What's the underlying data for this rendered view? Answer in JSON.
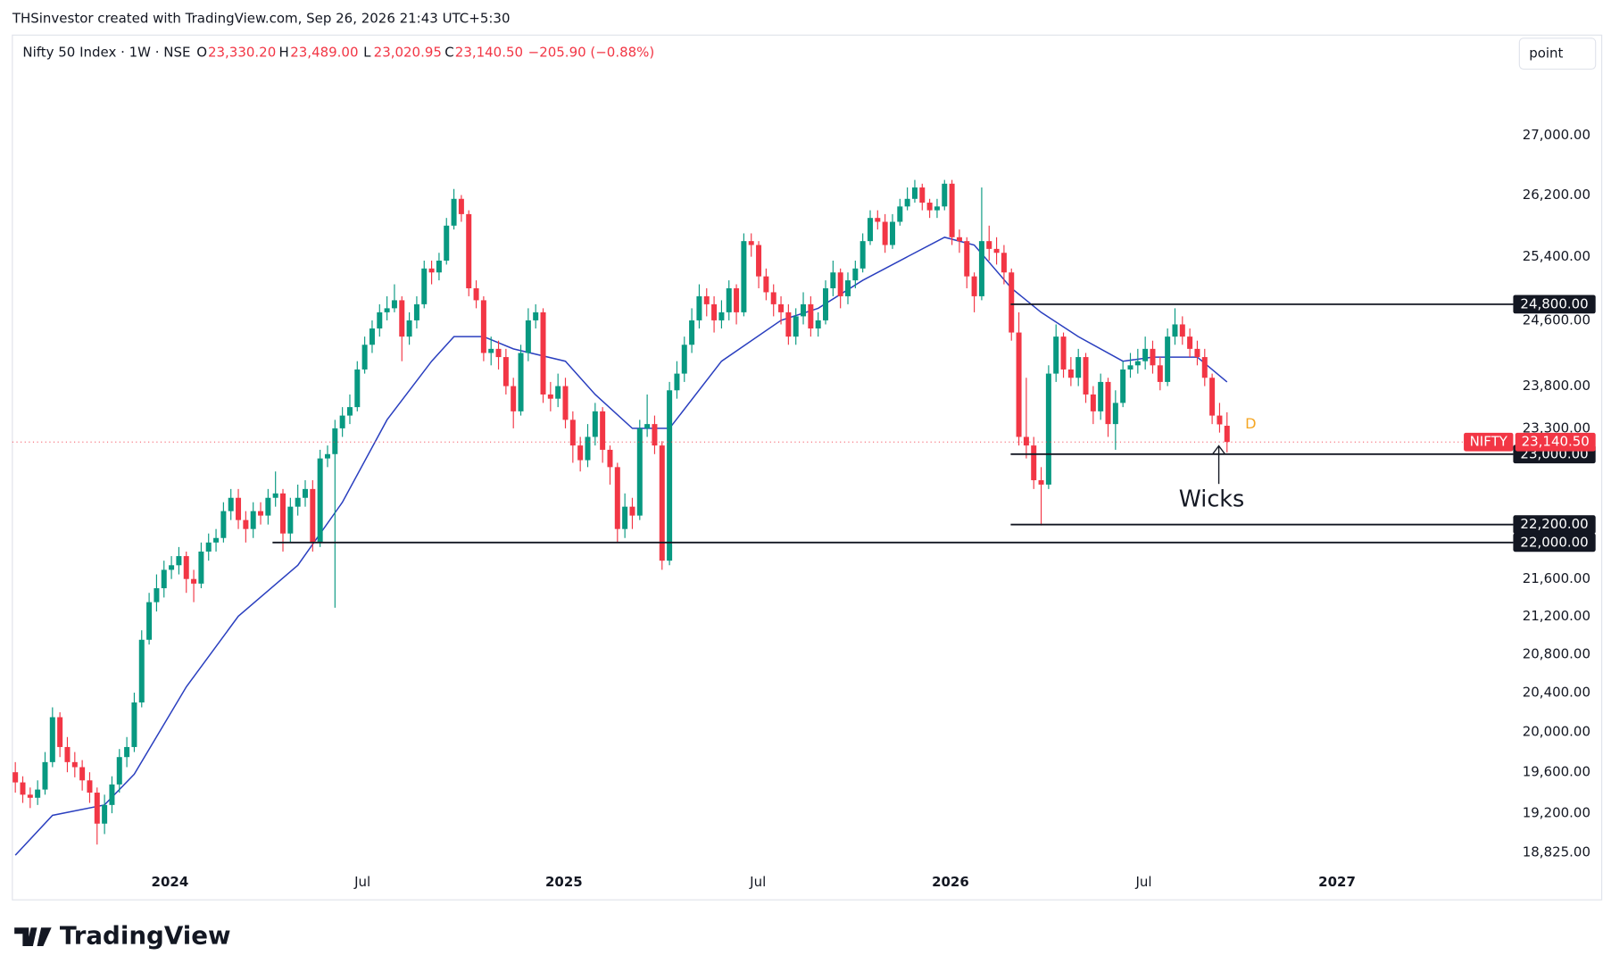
{
  "chart_data": {
    "type": "candlestick",
    "header": "THSinvestor created with TradingView.com, Sep 26, 2026 21:43 UTC+5:30",
    "symbol": "Nifty 50 Index · 1W · NSE",
    "ohlc_labels": {
      "open": "23,330.20",
      "high": "23,489.00",
      "low": "23,020.95",
      "close": "23,140.50"
    },
    "ohlc_letters": [
      "O",
      "H",
      "L",
      "C"
    ],
    "change_label": "−205.90 (−0.88%)",
    "button": "point",
    "brand": "TradingView",
    "marker": "D",
    "annotation": "Wicks",
    "log": true,
    "grid": false,
    "up_color": "#089981",
    "down_color": "#f23645",
    "xlim": [
      -0.4,
      201.5
    ],
    "ylim": [
      18420,
      27870
    ],
    "xticks": [
      {
        "value": 20.8,
        "label": "2024"
      },
      {
        "value": 46.7,
        "label": "Jul"
      },
      {
        "value": 73.8,
        "label": "2025"
      },
      {
        "value": 99.9,
        "label": "Jul"
      },
      {
        "value": 125.8,
        "label": "2026"
      },
      {
        "value": 151.8,
        "label": "Jul"
      },
      {
        "value": 177.8,
        "label": "2027"
      }
    ],
    "yticks": [
      {
        "value": 27000,
        "label": "27,000.00"
      },
      {
        "value": 26200,
        "label": "26,200.00"
      },
      {
        "value": 25400,
        "label": "25,400.00"
      },
      {
        "value": 24600,
        "label": "24,600.00"
      },
      {
        "value": 23800,
        "label": "23,800.00"
      },
      {
        "value": 23300,
        "label": "23,300.00"
      },
      {
        "value": 21600,
        "label": "21,600.00"
      },
      {
        "value": 21200,
        "label": "21,200.00"
      },
      {
        "value": 20800,
        "label": "20,800.00"
      },
      {
        "value": 20400,
        "label": "20,400.00"
      },
      {
        "value": 20000,
        "label": "20,000.00"
      },
      {
        "value": 19600,
        "label": "19,600.00"
      },
      {
        "value": 19200,
        "label": "19,200.00"
      },
      {
        "value": 18825,
        "label": "18,825.00"
      }
    ],
    "hlines": [
      {
        "value": 24800,
        "label": "24,800.00",
        "from": 133.9
      },
      {
        "value": 23000,
        "label": "23,000.00",
        "from": 133.9
      },
      {
        "value": 22200,
        "label": "22,200.00",
        "from": 133.9
      },
      {
        "value": 22000,
        "label": "22,000.00",
        "from": 34.6
      }
    ],
    "last": {
      "name": "NIFTY",
      "value": 23140.5,
      "label": "23,140.50"
    },
    "ma": {
      "color": "#2a3fbf",
      "x": [
        0,
        5,
        12,
        16,
        23,
        30,
        38,
        44,
        50,
        56,
        59,
        63,
        67,
        74,
        78,
        83,
        88,
        95,
        103,
        108,
        114,
        120,
        125,
        129,
        134,
        138,
        143,
        149,
        153,
        159,
        163
      ],
      "values": [
        18800,
        19180,
        19280,
        19580,
        20460,
        21200,
        21750,
        22450,
        23400,
        24100,
        24400,
        24400,
        24250,
        24100,
        23700,
        23300,
        23300,
        24100,
        24600,
        24750,
        25100,
        25400,
        25650,
        25550,
        25000,
        24700,
        24400,
        24100,
        24150,
        24150,
        23850
      ]
    },
    "open": [
      19600,
      19500,
      19380,
      19350,
      19430,
      19700,
      20150,
      19850,
      19700,
      19650,
      19520,
      19400,
      19100,
      19280,
      19480,
      19750,
      19850,
      20300,
      20950,
      21350,
      21500,
      21700,
      21750,
      21850,
      21600,
      21550,
      21900,
      22000,
      22050,
      22350,
      22500,
      22250,
      22150,
      22350,
      22300,
      22500,
      22550,
      22100,
      22400,
      22500,
      22600,
      22000,
      22950,
      23000,
      23300,
      23450,
      23550,
      24000,
      24300,
      24500,
      24700,
      24750,
      24850,
      24400,
      24600,
      24800,
      25250,
      25200,
      25350,
      25800,
      26150,
      25950,
      25000,
      24850,
      24200,
      24250,
      24150,
      23800,
      23500,
      24200,
      24600,
      24700,
      23700,
      23650,
      23800,
      23400,
      23100,
      22930,
      23200,
      23500,
      23050,
      22850,
      22150,
      22400,
      22300,
      23300,
      23350,
      23100,
      21800,
      23750,
      23950,
      24300,
      24600,
      24900,
      24800,
      24600,
      24700,
      25000,
      24700,
      25600,
      25550,
      25150,
      24950,
      24800,
      24700,
      24400,
      24650,
      24800,
      24500,
      24600,
      25000,
      25200,
      24900,
      25100,
      25250,
      25600,
      25900,
      25850,
      25550,
      25850,
      26050,
      26150,
      26300,
      26100,
      26000,
      26050,
      26350,
      25650,
      25600,
      25150,
      24900,
      25600,
      25500,
      25450,
      25200,
      24450,
      23200,
      23100,
      22700,
      22650,
      23950,
      24400,
      24000,
      23900,
      24150,
      23700,
      23500,
      23850,
      23350,
      23600,
      24000,
      24050,
      24100,
      24250,
      24050,
      23850,
      24400,
      24550,
      24400,
      24250,
      24150,
      23900,
      23450,
      23330.2
    ],
    "high": [
      19700,
      19560,
      19450,
      19520,
      19800,
      20250,
      20200,
      19950,
      19800,
      19720,
      19600,
      19450,
      19380,
      19560,
      19830,
      19950,
      20400,
      21050,
      21450,
      21650,
      21800,
      21850,
      21950,
      21900,
      21700,
      22000,
      22100,
      22150,
      22450,
      22600,
      22600,
      22350,
      22450,
      22450,
      22600,
      22800,
      22600,
      22500,
      22650,
      22700,
      22700,
      23050,
      23100,
      23400,
      23550,
      23700,
      24100,
      24400,
      24600,
      24800,
      24900,
      25050,
      24900,
      24700,
      24900,
      25350,
      25350,
      25450,
      25900,
      26280,
      26200,
      26000,
      25100,
      24900,
      24400,
      24350,
      24250,
      23900,
      24300,
      24750,
      24800,
      24750,
      23850,
      23950,
      23900,
      23500,
      23200,
      23350,
      23600,
      23550,
      23100,
      22900,
      22550,
      22500,
      23400,
      23700,
      23450,
      23150,
      23850,
      24100,
      24400,
      24750,
      25050,
      25000,
      24900,
      24850,
      25100,
      25050,
      25700,
      25700,
      25600,
      25250,
      25050,
      24900,
      24800,
      24750,
      24950,
      24900,
      24700,
      25100,
      25350,
      25250,
      25200,
      25350,
      25700,
      26000,
      26000,
      25950,
      25950,
      26150,
      26300,
      26400,
      26350,
      26150,
      26150,
      26400,
      26400,
      25750,
      25650,
      25200,
      26300,
      25800,
      25650,
      25550,
      25250,
      24700,
      23900,
      23200,
      22850,
      24050,
      24550,
      24450,
      24150,
      24250,
      24200,
      23800,
      23950,
      23900,
      23750,
      24100,
      24200,
      24250,
      24400,
      24350,
      24150,
      24500,
      24750,
      24650,
      24500,
      24350,
      24250,
      23950,
      23600,
      23489
    ],
    "low": [
      19400,
      19300,
      19250,
      19280,
      19380,
      19650,
      19750,
      19600,
      19550,
      19420,
      19300,
      18900,
      19000,
      19200,
      19400,
      19650,
      19800,
      20250,
      20900,
      21250,
      21400,
      21600,
      21650,
      21450,
      21350,
      21500,
      21800,
      21900,
      22000,
      22250,
      22150,
      22000,
      22050,
      22200,
      22200,
      22400,
      21900,
      22000,
      22300,
      22400,
      21900,
      21950,
      22850,
      21290,
      23200,
      23350,
      23500,
      23950,
      24200,
      24400,
      24600,
      24700,
      24100,
      24300,
      24500,
      24750,
      25050,
      25100,
      25300,
      25750,
      25850,
      24900,
      24750,
      24100,
      24050,
      24000,
      23700,
      23300,
      23450,
      24100,
      24500,
      23600,
      23500,
      23550,
      23300,
      22900,
      22800,
      22850,
      23100,
      22900,
      22650,
      22000,
      22050,
      22150,
      22250,
      23200,
      23000,
      21700,
      21750,
      23650,
      23850,
      24200,
      24500,
      24650,
      24450,
      24500,
      24600,
      24550,
      24650,
      25400,
      25000,
      24850,
      24650,
      24550,
      24300,
      24300,
      24550,
      24400,
      24400,
      24550,
      24900,
      24750,
      24800,
      25000,
      25200,
      25550,
      25750,
      25450,
      25500,
      25800,
      26000,
      26100,
      26000,
      25900,
      25900,
      26000,
      25550,
      25450,
      25000,
      24700,
      24850,
      25350,
      25300,
      25050,
      24350,
      23100,
      22950,
      22600,
      22190,
      22600,
      23850,
      23900,
      23800,
      23800,
      23600,
      23350,
      23400,
      23200,
      23050,
      23550,
      23900,
      23950,
      24000,
      23950,
      23750,
      23800,
      24300,
      24300,
      24150,
      24050,
      23800,
      23350,
      23250,
      23020.95
    ],
    "close": [
      19500,
      19380,
      19350,
      19430,
      19700,
      20150,
      19850,
      19700,
      19650,
      19520,
      19400,
      19100,
      19280,
      19480,
      19750,
      19850,
      20300,
      20950,
      21350,
      21500,
      21700,
      21750,
      21850,
      21600,
      21550,
      21900,
      22000,
      22050,
      22350,
      22500,
      22250,
      22150,
      22350,
      22300,
      22500,
      22550,
      22100,
      22400,
      22500,
      22600,
      22000,
      22950,
      23000,
      23300,
      23450,
      23550,
      24000,
      24300,
      24500,
      24700,
      24750,
      24850,
      24400,
      24600,
      24800,
      25250,
      25200,
      25350,
      25800,
      26150,
      25950,
      25000,
      24850,
      24200,
      24250,
      24150,
      23800,
      23500,
      24200,
      24600,
      24700,
      23700,
      23650,
      23800,
      23400,
      23100,
      22930,
      23200,
      23500,
      23050,
      22850,
      22150,
      22400,
      22300,
      23300,
      23350,
      23100,
      21800,
      23750,
      23950,
      24300,
      24600,
      24900,
      24800,
      24600,
      24700,
      25000,
      24700,
      25600,
      25550,
      25150,
      24950,
      24800,
      24700,
      24400,
      24650,
      24800,
      24500,
      24600,
      25000,
      25200,
      24900,
      25100,
      25250,
      25600,
      25900,
      25850,
      25550,
      25850,
      26050,
      26150,
      26300,
      26100,
      26000,
      26050,
      26350,
      25650,
      25600,
      25150,
      24900,
      25600,
      25500,
      25450,
      25200,
      24450,
      23200,
      23100,
      22700,
      22650,
      23950,
      24400,
      24000,
      23900,
      24150,
      23700,
      23500,
      23850,
      23350,
      23600,
      24000,
      24050,
      24100,
      24250,
      24050,
      23850,
      24400,
      24550,
      24400,
      24250,
      24150,
      23900,
      23450,
      23346.4,
      23140.5
    ]
  }
}
